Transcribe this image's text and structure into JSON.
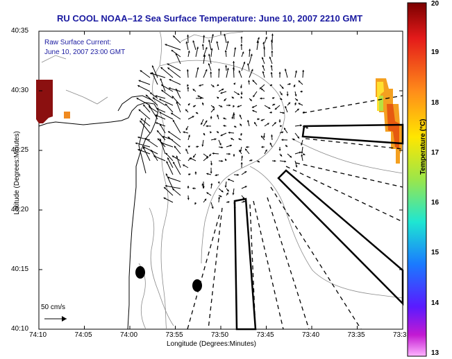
{
  "title": "RU COOL   NOAA–12  Sea Surface Temperature:  June 10, 2007 2210 GMT",
  "current_label": "Raw Surface Current:",
  "current_time": "June 10, 2007 23:00 GMT",
  "scale_label": "50 cm/s",
  "xlabel": "Longitude (Degrees:Minutes)",
  "ylabel": "Latitude (Degrees:Minutes)",
  "colorbar_label": "Temperature (°C)",
  "x_ticks": [
    "74:10",
    "74:05",
    "74:00",
    "73:55",
    "73:50",
    "73:45",
    "73:40",
    "73:35",
    "73:3"
  ],
  "y_ticks": [
    "40:35",
    "40:30",
    "40:25",
    "40:20",
    "40:15",
    "40:10"
  ],
  "colorbar_ticks": [
    "20",
    "19",
    "18",
    "17",
    "16",
    "15",
    "14",
    "13"
  ],
  "colorbar": {
    "min": 13,
    "max": 20
  },
  "colors": {
    "title": "#1a1aa0",
    "land_bg": "#ffffff",
    "contour": "#8a8a8a"
  }
}
